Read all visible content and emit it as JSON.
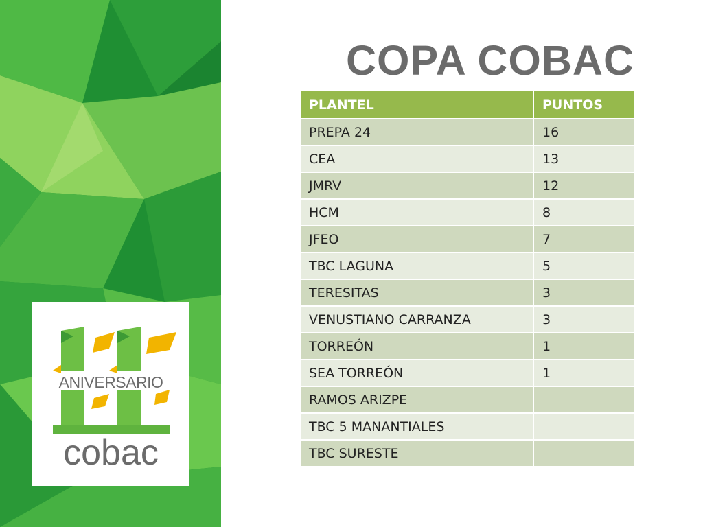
{
  "title": "COPA COBAC",
  "table": {
    "headers": [
      "PLANTEL",
      "PUNTOS"
    ],
    "rows": [
      [
        "PREPA 24",
        "16"
      ],
      [
        "CEA",
        "13"
      ],
      [
        "JMRV",
        "12"
      ],
      [
        "HCM",
        "8"
      ],
      [
        "JFEO",
        "7"
      ],
      [
        "TBC LAGUNA",
        "5"
      ],
      [
        "TERESITAS",
        "3"
      ],
      [
        "VENUSTIANO CARRANZA",
        "3"
      ],
      [
        "TORREÓN",
        "1"
      ],
      [
        "SEA TORREÓN",
        "1"
      ],
      [
        "RAMOS ARIZPE",
        ""
      ],
      [
        "TBC 5 MANANTIALES",
        ""
      ],
      [
        "TBC SURESTE",
        ""
      ]
    ]
  },
  "logo": {
    "number": "11",
    "caption": "ANIVERSARIO",
    "brand": "cobac"
  },
  "colors": {
    "header_green": "#96b94c",
    "row_odd": "#cfd9be",
    "row_even": "#e7ecdf",
    "title_gray": "#6b6b6b",
    "panel_green": "#2a9a3a",
    "accent_yellow": "#f2b400"
  }
}
